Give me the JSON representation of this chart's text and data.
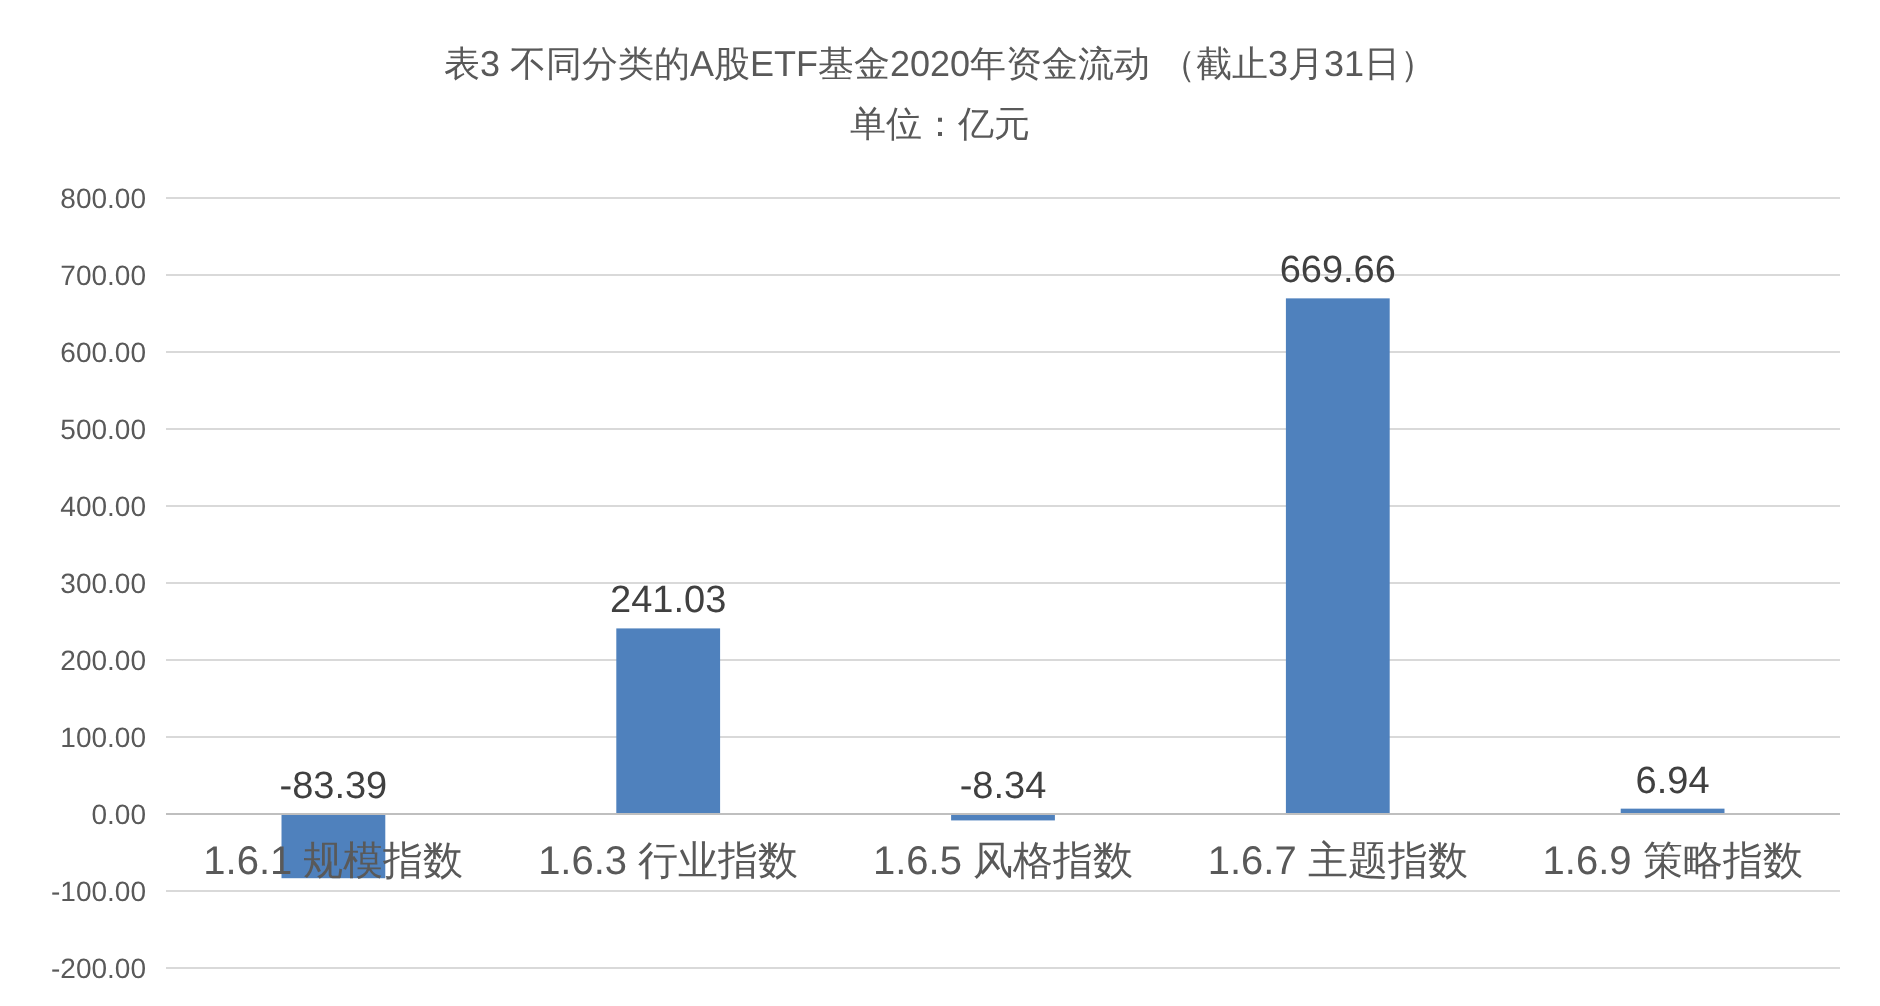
{
  "chart_data": {
    "type": "bar",
    "title": "表3   不同分类的A股ETF基金2020年资金流动 （截止3月31日）",
    "subtitle": "单位：亿元",
    "categories": [
      "1.6.1 规模指数",
      "1.6.3 行业指数",
      "1.6.5 风格指数",
      "1.6.7 主题指数",
      "1.6.9 策略指数"
    ],
    "values": [
      -83.39,
      241.03,
      -8.34,
      669.66,
      6.94
    ],
    "color": "#4f81bd",
    "ylim": [
      -200,
      800
    ],
    "yticks": [
      {
        "value": -200,
        "label": "-200.00"
      },
      {
        "value": -100,
        "label": "-100.00"
      },
      {
        "value": 0,
        "label": "0.00"
      },
      {
        "value": 100,
        "label": "100.00"
      },
      {
        "value": 200,
        "label": "200.00"
      },
      {
        "value": 300,
        "label": "300.00"
      },
      {
        "value": 400,
        "label": "400.00"
      },
      {
        "value": 500,
        "label": "500.00"
      },
      {
        "value": 600,
        "label": "600.00"
      },
      {
        "value": 700,
        "label": "700.00"
      },
      {
        "value": 800,
        "label": "800.00"
      }
    ],
    "grid": "y",
    "data_labels": true
  }
}
